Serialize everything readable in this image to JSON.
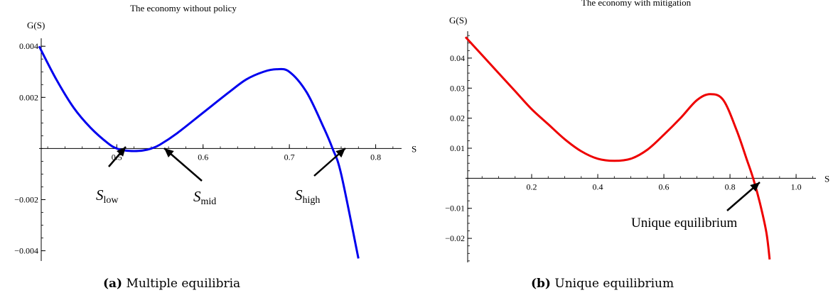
{
  "chart_data": [
    {
      "type": "line",
      "title": "The economy without policy",
      "xlabel": "S",
      "ylabel": "G(S)",
      "xlim": [
        0.41,
        0.83
      ],
      "ylim": [
        -0.0044,
        0.0042
      ],
      "x_ticks": [
        0.5,
        0.6,
        0.7,
        0.8
      ],
      "x_tick_labels": [
        "0.5",
        "0.6",
        "0.7",
        "0.8"
      ],
      "y_ticks": [
        0.004,
        0.002,
        -0.002,
        -0.004
      ],
      "y_tick_labels": [
        "0.004",
        "0.002",
        "−0.002",
        "−0.004"
      ],
      "grid": false,
      "color": "#0000ee",
      "series": [
        {
          "x": [
            0.41,
            0.43,
            0.45,
            0.47,
            0.49,
            0.5,
            0.51,
            0.52,
            0.53,
            0.54,
            0.55,
            0.57,
            0.6,
            0.63,
            0.65,
            0.67,
            0.685,
            0.7,
            0.72,
            0.74,
            0.75,
            0.76,
            0.78
          ],
          "y": [
            0.004,
            0.0027,
            0.0016,
            0.0008,
            0.0002,
            0.0,
            -8e-05,
            -0.0001,
            -8e-05,
            0.0,
            0.00015,
            0.0006,
            0.0014,
            0.0022,
            0.0027,
            0.003,
            0.0031,
            0.003,
            0.0022,
            0.0008,
            0.0,
            -0.001,
            -0.0043
          ]
        }
      ],
      "annotations": [
        {
          "label": "S",
          "sub": "low",
          "x": 0.5,
          "y": 0.0
        },
        {
          "label": "S",
          "sub": "mid",
          "x": 0.54,
          "y": 0.0
        },
        {
          "label": "S",
          "sub": "high",
          "x": 0.75,
          "y": 0.0
        }
      ]
    },
    {
      "type": "line",
      "title": "The economy with mitigation",
      "xlabel": "S",
      "ylabel": "G(S)",
      "xlim": [
        0.0,
        1.06
      ],
      "ylim": [
        -0.028,
        0.048
      ],
      "x_ticks": [
        0.2,
        0.4,
        0.6,
        0.8,
        1.0
      ],
      "x_tick_labels": [
        "0.2",
        "0.4",
        "0.6",
        "0.8",
        "1.0"
      ],
      "y_ticks": [
        0.04,
        0.03,
        0.02,
        0.01,
        -0.01,
        -0.02
      ],
      "y_tick_labels": [
        "0.04",
        "0.03",
        "0.02",
        "0.01",
        "−0.01",
        "−0.02"
      ],
      "grid": false,
      "color": "#ee0000",
      "series": [
        {
          "x": [
            0.0,
            0.05,
            0.1,
            0.15,
            0.2,
            0.25,
            0.3,
            0.35,
            0.4,
            0.45,
            0.5,
            0.55,
            0.6,
            0.65,
            0.7,
            0.74,
            0.78,
            0.82,
            0.85,
            0.87,
            0.89,
            0.91,
            0.92
          ],
          "y": [
            0.047,
            0.041,
            0.035,
            0.029,
            0.023,
            0.018,
            0.013,
            0.009,
            0.0065,
            0.0058,
            0.0065,
            0.0095,
            0.0145,
            0.02,
            0.026,
            0.028,
            0.026,
            0.016,
            0.0065,
            0.0,
            -0.008,
            -0.018,
            -0.027
          ]
        }
      ],
      "annotations": [
        {
          "label": "Unique equilibrium",
          "x": 0.87,
          "y": 0.0
        }
      ]
    }
  ],
  "captions": [
    {
      "tag": "(a)",
      "text": "Multiple equilibria"
    },
    {
      "tag": "(b)",
      "text": "Unique equilibrium"
    }
  ]
}
